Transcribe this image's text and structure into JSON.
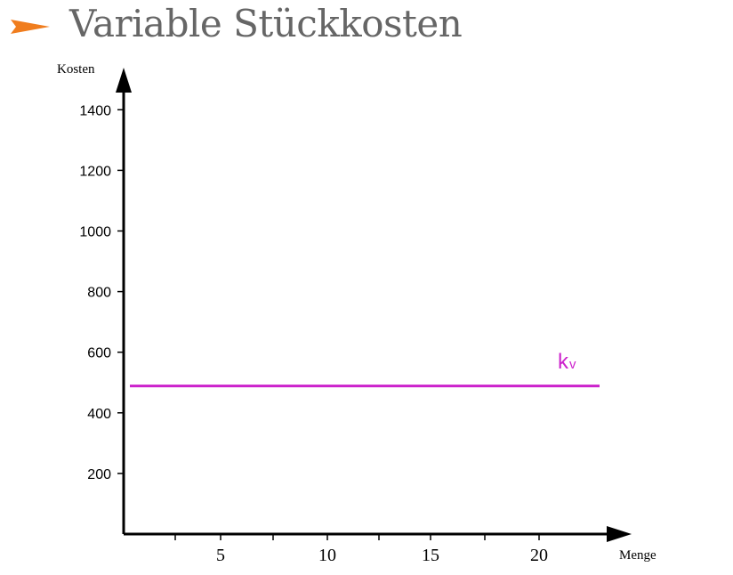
{
  "slide": {
    "title": "Variable Stückkosten",
    "bullet_icon": "orange-arrow-bullet",
    "accent_color": "#f07d1e",
    "title_color": "#666666"
  },
  "chart_data": {
    "type": "line",
    "title": "",
    "xlabel": "Menge",
    "ylabel": "Kosten",
    "xlim": [
      0,
      23
    ],
    "ylim": [
      0,
      1500
    ],
    "x_ticks": [
      0.5,
      5,
      10,
      15,
      20,
      22.5
    ],
    "x_tick_labels": [
      "5",
      "10",
      "15",
      "20"
    ],
    "x_labeled_ticks": [
      5,
      10,
      15,
      20
    ],
    "x_minor_ticks": [
      2.5,
      7.5,
      12.5,
      17.5
    ],
    "y_ticks": [
      200,
      400,
      600,
      800,
      1000,
      1200,
      1400
    ],
    "y_tick_labels": [
      "200",
      "400",
      "600",
      "800",
      "1000",
      "1200",
      "1400"
    ],
    "grid": false,
    "series": [
      {
        "name": "kv",
        "label_main": "k",
        "label_sub": "v",
        "color": "#cc22cc",
        "x": [
          0.3,
          22.5
        ],
        "y": [
          490,
          490
        ]
      }
    ]
  }
}
